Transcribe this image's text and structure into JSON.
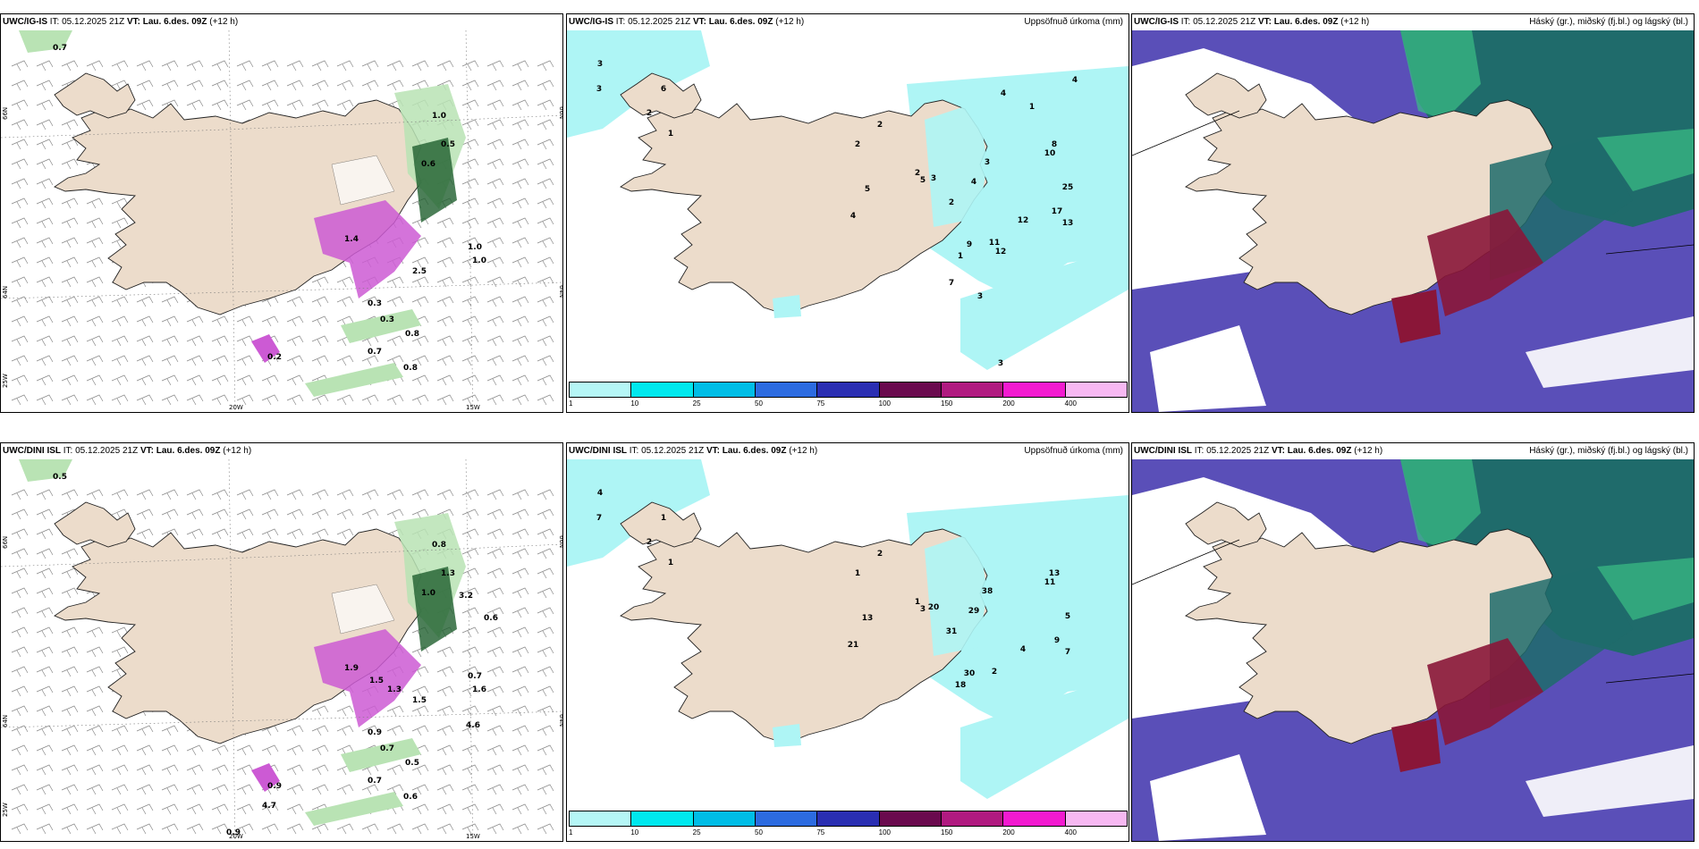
{
  "colors": {
    "land": "#ecdccb",
    "sea": "#ffffff",
    "snow_light": "#b9e3b4",
    "snow_dark": "#1f5f2e",
    "precip_cyan": "#aef5f5",
    "cloud_high": "#1f6b6b",
    "cloud_mid": "#5a4fb8",
    "cloud_low": "#8a1638",
    "cloud_green": "#3bbf84",
    "magenta": "#cc5ad4"
  },
  "panels": [
    {
      "id": "igis-wind",
      "model": "UWC/IG-IS",
      "it_label": "IT:",
      "it": "05.12.2025 21Z",
      "vt_label": "VT:",
      "vt": "Lau. 6.des. 09Z",
      "lead": "(+12 h)",
      "title_right": "",
      "lat_labels": [
        "66N",
        "64N",
        "25W"
      ],
      "lon_labels": [
        "20W",
        "15W"
      ],
      "rlat_labels": [
        "66N",
        "64N"
      ],
      "values": [
        "0.7",
        "0.8",
        "0.8",
        "0.7",
        "1.0",
        "0.5",
        "1.0",
        "0.6",
        "2.5",
        "1.0",
        "1.4",
        "0.3",
        "0.3",
        "0.2"
      ]
    },
    {
      "id": "igis-precip",
      "model": "UWC/IG-IS",
      "it_label": "IT:",
      "it": "05.12.2025 21Z",
      "vt_label": "VT:",
      "vt": "Lau. 6.des. 09Z",
      "lead": "(+12 h)",
      "title_right": "Uppsöfnuð úrkoma (mm)",
      "values": [
        "3",
        "3",
        "6",
        "2",
        "1",
        "2",
        "2",
        "2",
        "5",
        "5",
        "4",
        "3",
        "4",
        "3",
        "2",
        "1",
        "9",
        "8",
        "10",
        "25",
        "17",
        "13",
        "12",
        "11",
        "12",
        "7",
        "3",
        "3",
        "4",
        "1",
        "4"
      ]
    },
    {
      "id": "igis-cloud",
      "model": "UWC/IG-IS",
      "it_label": "IT:",
      "it": "05.12.2025 21Z",
      "vt_label": "VT:",
      "vt": "Lau. 6.des. 09Z",
      "lead": "(+12 h)",
      "title_right": "Háský (gr.), miðský (fj.bl.) og lágský (bl.)"
    },
    {
      "id": "dini-wind",
      "model": "UWC/DINI ISL",
      "it_label": "IT:",
      "it": "05.12.2025 21Z",
      "vt_label": "VT:",
      "vt": "Lau. 6.des. 09Z",
      "lead": "(+12 h)",
      "title_right": "",
      "lat_labels": [
        "66N",
        "64N",
        "25W"
      ],
      "lon_labels": [
        "20W",
        "15W"
      ],
      "rlat_labels": [
        "66N",
        "64N"
      ],
      "values": [
        "0.5",
        "0.6",
        "0.5",
        "0.7",
        "0.8",
        "1.3",
        "1.6",
        "1.0",
        "1.5",
        "0.7",
        "1.9",
        "0.9",
        "0.7",
        "0.9",
        "4.7",
        "4.6",
        "3.2",
        "0.9",
        "0.6",
        "1.5",
        "1.3"
      ]
    },
    {
      "id": "dini-precip",
      "model": "UWC/DINI ISL",
      "it_label": "IT:",
      "it": "05.12.2025 21Z",
      "vt_label": "VT:",
      "vt": "Lau. 6.des. 09Z",
      "lead": "(+12 h)",
      "title_right": "Uppsöfnuð úrkoma (mm)",
      "values": [
        "4",
        "7",
        "1",
        "2",
        "1",
        "1",
        "2",
        "1",
        "3",
        "13",
        "21",
        "38",
        "29",
        "20",
        "31",
        "18",
        "30",
        "13",
        "11",
        "5",
        "9",
        "7",
        "4",
        "2"
      ]
    },
    {
      "id": "dini-cloud",
      "model": "UWC/DINI ISL",
      "it_label": "IT:",
      "it": "05.12.2025 21Z",
      "vt_label": "VT:",
      "vt": "Lau. 6.des. 09Z",
      "lead": "(+12 h)",
      "title_right": "Háský (gr.), miðský (fj.bl.) og lágský (bl.)"
    }
  ],
  "colorbar": {
    "ticks": [
      "1",
      "10",
      "25",
      "50",
      "75",
      "100",
      "150",
      "200",
      "400"
    ],
    "colors": [
      "#b5f6f6",
      "#00e8ee",
      "#00bde6",
      "#2c6be0",
      "#2a2eb2",
      "#6a0a4e",
      "#b01a80",
      "#f21ad0",
      "#f7b8f2"
    ]
  }
}
